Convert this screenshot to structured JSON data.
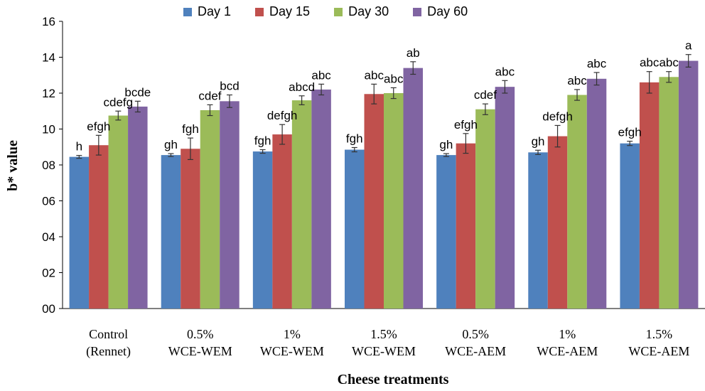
{
  "chart_data": {
    "type": "bar",
    "title": "",
    "xlabel": "Cheese treatments",
    "ylabel": "b* value",
    "ylim": [
      0,
      16
    ],
    "ytick_values": [
      0,
      2,
      4,
      6,
      8,
      10,
      12,
      14,
      16
    ],
    "ytick_labels": [
      "00",
      "02",
      "04",
      "06",
      "08",
      "10",
      "12",
      "14",
      "16"
    ],
    "grid": false,
    "legend_position": "top",
    "categories": [
      [
        "Control",
        "(Rennet)"
      ],
      [
        "0.5%",
        "WCE-WEM"
      ],
      [
        "1%",
        "WCE-WEM"
      ],
      [
        "1.5%",
        "WCE-WEM"
      ],
      [
        "0.5%",
        "WCE-AEM"
      ],
      [
        "1%",
        "WCE-AEM"
      ],
      [
        "1.5%",
        "WCE-AEM"
      ]
    ],
    "series": [
      {
        "name": "Day 1",
        "color": "#4F81BD",
        "values": [
          8.45,
          8.55,
          8.75,
          8.85,
          8.55,
          8.7,
          9.2
        ],
        "errors": [
          0.08,
          0.08,
          0.1,
          0.12,
          0.08,
          0.12,
          0.12
        ],
        "letters": [
          "h",
          "gh",
          "fgh",
          "fgh",
          "gh",
          "gh",
          "efgh"
        ]
      },
      {
        "name": "Day 15",
        "color": "#C0504D",
        "values": [
          9.1,
          8.9,
          9.7,
          11.95,
          9.2,
          9.6,
          12.6
        ],
        "errors": [
          0.55,
          0.6,
          0.55,
          0.55,
          0.55,
          0.6,
          0.6
        ],
        "letters": [
          "efgh",
          "fgh",
          "defgh",
          "abc",
          "efgh",
          "defgh",
          "abc"
        ]
      },
      {
        "name": "Day 30",
        "color": "#9BBB59",
        "values": [
          10.75,
          11.05,
          11.6,
          12.0,
          11.1,
          11.9,
          12.9
        ],
        "errors": [
          0.25,
          0.3,
          0.25,
          0.3,
          0.3,
          0.3,
          0.3
        ],
        "letters": [
          "cdefg",
          "cdef",
          "abcd",
          "abc",
          "cdef",
          "abc",
          "abc"
        ]
      },
      {
        "name": "Day 60",
        "color": "#8064A2",
        "values": [
          11.25,
          11.55,
          12.2,
          13.4,
          12.35,
          12.8,
          13.8
        ],
        "errors": [
          0.3,
          0.35,
          0.3,
          0.35,
          0.35,
          0.35,
          0.35
        ],
        "letters": [
          "bcde",
          "bcd",
          "abc",
          "ab",
          "abc",
          "abc",
          "a"
        ]
      }
    ]
  }
}
